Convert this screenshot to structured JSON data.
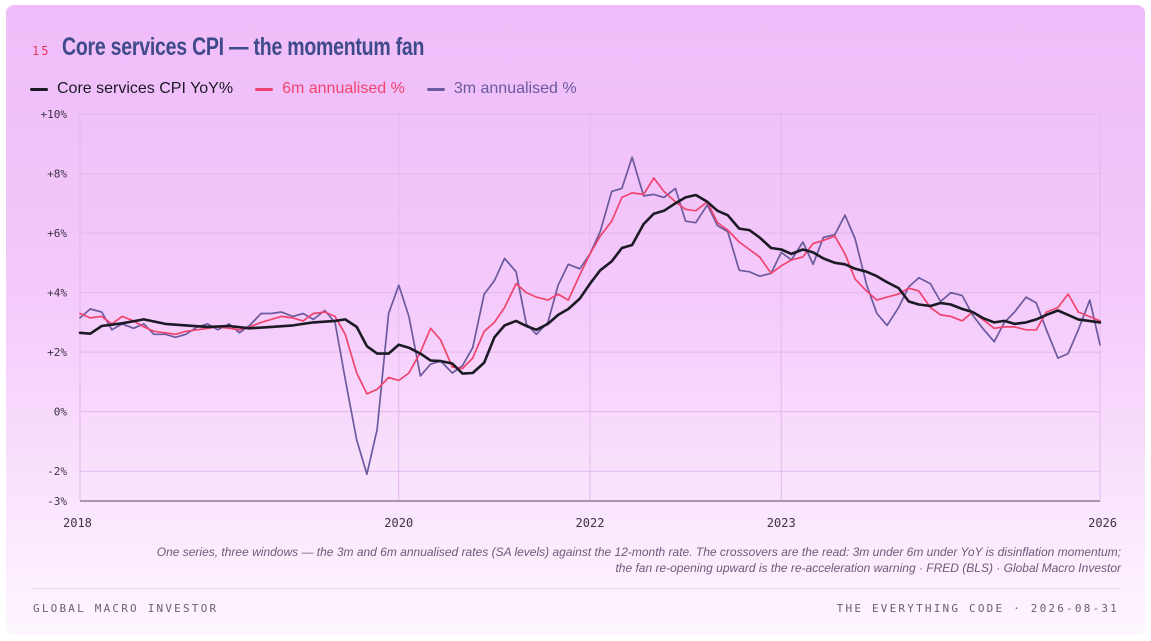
{
  "figure_number": "15",
  "title": "Core services CPI — the momentum fan",
  "caption_line1": "One series, three windows — the 3m and 6m annualised rates (SA levels) against the 12-month rate. The crossovers are the read: 3m under 6m under YoY is disinflation momentum;",
  "caption_line2": "the fan re-opening upward is the re-acceleration warning · FRED (BLS) · Global Macro Investor",
  "footer_left": "GLOBAL MACRO INVESTOR",
  "footer_right": "THE EVERYTHING CODE · 2026-08-31",
  "chart_data": {
    "type": "line",
    "x_axis": {
      "start": 2018.0,
      "end": 2026.0,
      "ticks": [
        {
          "value": 2018.0,
          "label": "2018"
        },
        {
          "value": 2020.5,
          "label": "2020"
        },
        {
          "value": 2022.0,
          "label": "2022"
        },
        {
          "value": 2023.5,
          "label": "2023"
        },
        {
          "value": 2026.0,
          "label": "2026"
        }
      ]
    },
    "y_axis": {
      "ylim": [
        -3,
        10
      ],
      "ticks": [
        {
          "value": 10,
          "label": "+10%"
        },
        {
          "value": 8,
          "label": "+8%"
        },
        {
          "value": 6,
          "label": "+6%"
        },
        {
          "value": 4,
          "label": "+4%"
        },
        {
          "value": 2,
          "label": "+2%"
        },
        {
          "value": 0,
          "label": "0%"
        },
        {
          "value": -2,
          "label": "-2%"
        },
        {
          "value": -3,
          "label": "-3%"
        }
      ]
    },
    "grid": true,
    "legend_position": "top-left",
    "series": [
      {
        "name": "Core services CPI YoY%",
        "color": "#1c1a24",
        "points": [
          [
            2018.0,
            2.65
          ],
          [
            2018.08,
            2.62
          ],
          [
            2018.17,
            2.88
          ],
          [
            2018.33,
            2.97
          ],
          [
            2018.5,
            3.1
          ],
          [
            2018.67,
            2.95
          ],
          [
            2018.83,
            2.9
          ],
          [
            2019.0,
            2.85
          ],
          [
            2019.17,
            2.88
          ],
          [
            2019.33,
            2.8
          ],
          [
            2019.5,
            2.85
          ],
          [
            2019.67,
            2.9
          ],
          [
            2019.83,
            3.0
          ],
          [
            2020.0,
            3.05
          ],
          [
            2020.08,
            3.1
          ],
          [
            2020.17,
            2.85
          ],
          [
            2020.25,
            2.2
          ],
          [
            2020.33,
            1.95
          ],
          [
            2020.42,
            1.95
          ],
          [
            2020.5,
            2.25
          ],
          [
            2020.58,
            2.15
          ],
          [
            2020.67,
            1.95
          ],
          [
            2020.75,
            1.72
          ],
          [
            2020.83,
            1.7
          ],
          [
            2020.92,
            1.62
          ],
          [
            2021.0,
            1.28
          ],
          [
            2021.08,
            1.3
          ],
          [
            2021.17,
            1.65
          ],
          [
            2021.25,
            2.5
          ],
          [
            2021.33,
            2.9
          ],
          [
            2021.42,
            3.05
          ],
          [
            2021.5,
            2.88
          ],
          [
            2021.58,
            2.75
          ],
          [
            2021.67,
            2.95
          ],
          [
            2021.75,
            3.25
          ],
          [
            2021.83,
            3.45
          ],
          [
            2021.92,
            3.8
          ],
          [
            2022.0,
            4.3
          ],
          [
            2022.08,
            4.75
          ],
          [
            2022.17,
            5.05
          ],
          [
            2022.25,
            5.5
          ],
          [
            2022.33,
            5.6
          ],
          [
            2022.42,
            6.3
          ],
          [
            2022.5,
            6.65
          ],
          [
            2022.58,
            6.75
          ],
          [
            2022.67,
            7.0
          ],
          [
            2022.75,
            7.2
          ],
          [
            2022.83,
            7.28
          ],
          [
            2022.92,
            7.05
          ],
          [
            2023.0,
            6.75
          ],
          [
            2023.08,
            6.6
          ],
          [
            2023.17,
            6.15
          ],
          [
            2023.25,
            6.1
          ],
          [
            2023.33,
            5.85
          ],
          [
            2023.42,
            5.5
          ],
          [
            2023.5,
            5.45
          ],
          [
            2023.58,
            5.3
          ],
          [
            2023.67,
            5.45
          ],
          [
            2023.75,
            5.35
          ],
          [
            2023.83,
            5.15
          ],
          [
            2023.92,
            5.0
          ],
          [
            2024.0,
            4.95
          ],
          [
            2024.08,
            4.8
          ],
          [
            2024.17,
            4.7
          ],
          [
            2024.25,
            4.55
          ],
          [
            2024.33,
            4.35
          ],
          [
            2024.42,
            4.15
          ],
          [
            2024.5,
            3.7
          ],
          [
            2024.58,
            3.6
          ],
          [
            2024.67,
            3.55
          ],
          [
            2024.75,
            3.65
          ],
          [
            2024.83,
            3.6
          ],
          [
            2024.92,
            3.45
          ],
          [
            2025.0,
            3.35
          ],
          [
            2025.08,
            3.15
          ],
          [
            2025.17,
            3.0
          ],
          [
            2025.25,
            3.05
          ],
          [
            2025.33,
            2.95
          ],
          [
            2025.42,
            3.0
          ],
          [
            2025.5,
            3.1
          ],
          [
            2025.58,
            3.25
          ],
          [
            2025.67,
            3.4
          ],
          [
            2025.75,
            3.25
          ],
          [
            2025.83,
            3.1
          ],
          [
            2026.0,
            3.0
          ]
        ]
      },
      {
        "name": "6m annualised %",
        "color": "#f0446e",
        "points": [
          [
            2018.0,
            3.3
          ],
          [
            2018.08,
            3.15
          ],
          [
            2018.17,
            3.2
          ],
          [
            2018.25,
            2.95
          ],
          [
            2018.33,
            3.2
          ],
          [
            2018.42,
            3.05
          ],
          [
            2018.5,
            2.85
          ],
          [
            2018.58,
            2.7
          ],
          [
            2018.67,
            2.65
          ],
          [
            2018.75,
            2.6
          ],
          [
            2018.83,
            2.7
          ],
          [
            2018.92,
            2.75
          ],
          [
            2019.0,
            2.8
          ],
          [
            2019.08,
            2.85
          ],
          [
            2019.17,
            2.8
          ],
          [
            2019.25,
            2.75
          ],
          [
            2019.33,
            2.85
          ],
          [
            2019.42,
            3.0
          ],
          [
            2019.5,
            3.1
          ],
          [
            2019.58,
            3.2
          ],
          [
            2019.67,
            3.15
          ],
          [
            2019.75,
            3.05
          ],
          [
            2019.83,
            3.3
          ],
          [
            2019.92,
            3.35
          ],
          [
            2020.0,
            3.2
          ],
          [
            2020.08,
            2.6
          ],
          [
            2020.17,
            1.3
          ],
          [
            2020.25,
            0.6
          ],
          [
            2020.33,
            0.75
          ],
          [
            2020.42,
            1.15
          ],
          [
            2020.5,
            1.05
          ],
          [
            2020.58,
            1.3
          ],
          [
            2020.67,
            2.0
          ],
          [
            2020.75,
            2.8
          ],
          [
            2020.83,
            2.4
          ],
          [
            2020.92,
            1.5
          ],
          [
            2021.0,
            1.45
          ],
          [
            2021.08,
            1.8
          ],
          [
            2021.17,
            2.7
          ],
          [
            2021.25,
            3.0
          ],
          [
            2021.33,
            3.5
          ],
          [
            2021.42,
            4.3
          ],
          [
            2021.5,
            4.0
          ],
          [
            2021.58,
            3.85
          ],
          [
            2021.67,
            3.75
          ],
          [
            2021.75,
            3.95
          ],
          [
            2021.83,
            3.75
          ],
          [
            2021.92,
            4.6
          ],
          [
            2022.0,
            5.3
          ],
          [
            2022.08,
            5.9
          ],
          [
            2022.17,
            6.4
          ],
          [
            2022.25,
            7.2
          ],
          [
            2022.33,
            7.35
          ],
          [
            2022.42,
            7.3
          ],
          [
            2022.5,
            7.85
          ],
          [
            2022.58,
            7.4
          ],
          [
            2022.67,
            7.05
          ],
          [
            2022.75,
            6.8
          ],
          [
            2022.83,
            6.75
          ],
          [
            2022.92,
            7.05
          ],
          [
            2023.0,
            6.35
          ],
          [
            2023.08,
            6.1
          ],
          [
            2023.17,
            5.7
          ],
          [
            2023.25,
            5.45
          ],
          [
            2023.33,
            5.2
          ],
          [
            2023.42,
            4.65
          ],
          [
            2023.5,
            4.9
          ],
          [
            2023.58,
            5.1
          ],
          [
            2023.67,
            5.2
          ],
          [
            2023.75,
            5.65
          ],
          [
            2023.83,
            5.75
          ],
          [
            2023.92,
            5.9
          ],
          [
            2024.0,
            5.3
          ],
          [
            2024.08,
            4.45
          ],
          [
            2024.17,
            4.05
          ],
          [
            2024.25,
            3.75
          ],
          [
            2024.33,
            3.85
          ],
          [
            2024.42,
            3.95
          ],
          [
            2024.5,
            4.15
          ],
          [
            2024.58,
            4.05
          ],
          [
            2024.67,
            3.5
          ],
          [
            2024.75,
            3.25
          ],
          [
            2024.83,
            3.2
          ],
          [
            2024.92,
            3.05
          ],
          [
            2025.0,
            3.35
          ],
          [
            2025.08,
            3.1
          ],
          [
            2025.17,
            2.8
          ],
          [
            2025.25,
            2.85
          ],
          [
            2025.33,
            2.85
          ],
          [
            2025.42,
            2.75
          ],
          [
            2025.5,
            2.75
          ],
          [
            2025.58,
            3.35
          ],
          [
            2025.67,
            3.5
          ],
          [
            2025.75,
            3.95
          ],
          [
            2025.83,
            3.35
          ],
          [
            2026.0,
            3.05
          ]
        ]
      },
      {
        "name": "3m annualised %",
        "color": "#6b5a9e",
        "points": [
          [
            2018.0,
            3.15
          ],
          [
            2018.08,
            3.45
          ],
          [
            2018.17,
            3.35
          ],
          [
            2018.25,
            2.75
          ],
          [
            2018.33,
            2.95
          ],
          [
            2018.42,
            2.8
          ],
          [
            2018.5,
            2.95
          ],
          [
            2018.58,
            2.6
          ],
          [
            2018.67,
            2.6
          ],
          [
            2018.75,
            2.5
          ],
          [
            2018.83,
            2.6
          ],
          [
            2018.92,
            2.85
          ],
          [
            2019.0,
            2.95
          ],
          [
            2019.08,
            2.75
          ],
          [
            2019.17,
            2.95
          ],
          [
            2019.25,
            2.65
          ],
          [
            2019.33,
            2.9
          ],
          [
            2019.42,
            3.3
          ],
          [
            2019.5,
            3.3
          ],
          [
            2019.58,
            3.35
          ],
          [
            2019.67,
            3.2
          ],
          [
            2019.75,
            3.3
          ],
          [
            2019.83,
            3.1
          ],
          [
            2019.92,
            3.4
          ],
          [
            2020.0,
            3.0
          ],
          [
            2020.08,
            1.1
          ],
          [
            2020.17,
            -0.95
          ],
          [
            2020.25,
            -2.1
          ],
          [
            2020.33,
            -0.6
          ],
          [
            2020.42,
            3.3
          ],
          [
            2020.5,
            4.25
          ],
          [
            2020.58,
            3.2
          ],
          [
            2020.67,
            1.2
          ],
          [
            2020.75,
            1.6
          ],
          [
            2020.83,
            1.7
          ],
          [
            2020.92,
            1.3
          ],
          [
            2021.0,
            1.55
          ],
          [
            2021.08,
            2.15
          ],
          [
            2021.17,
            3.95
          ],
          [
            2021.25,
            4.4
          ],
          [
            2021.33,
            5.15
          ],
          [
            2021.42,
            4.7
          ],
          [
            2021.5,
            2.95
          ],
          [
            2021.58,
            2.6
          ],
          [
            2021.67,
            3.0
          ],
          [
            2021.75,
            4.25
          ],
          [
            2021.83,
            4.95
          ],
          [
            2021.92,
            4.8
          ],
          [
            2022.0,
            5.3
          ],
          [
            2022.08,
            6.05
          ],
          [
            2022.17,
            7.4
          ],
          [
            2022.25,
            7.5
          ],
          [
            2022.33,
            8.55
          ],
          [
            2022.42,
            7.25
          ],
          [
            2022.5,
            7.3
          ],
          [
            2022.58,
            7.2
          ],
          [
            2022.67,
            7.5
          ],
          [
            2022.75,
            6.4
          ],
          [
            2022.83,
            6.35
          ],
          [
            2022.92,
            6.95
          ],
          [
            2023.0,
            6.25
          ],
          [
            2023.08,
            6.05
          ],
          [
            2023.17,
            4.75
          ],
          [
            2023.25,
            4.7
          ],
          [
            2023.33,
            4.55
          ],
          [
            2023.42,
            4.65
          ],
          [
            2023.5,
            5.35
          ],
          [
            2023.58,
            5.1
          ],
          [
            2023.67,
            5.7
          ],
          [
            2023.75,
            4.95
          ],
          [
            2023.83,
            5.85
          ],
          [
            2023.92,
            5.95
          ],
          [
            2024.0,
            6.6
          ],
          [
            2024.08,
            5.8
          ],
          [
            2024.17,
            4.25
          ],
          [
            2024.25,
            3.3
          ],
          [
            2024.33,
            2.9
          ],
          [
            2024.42,
            3.5
          ],
          [
            2024.5,
            4.2
          ],
          [
            2024.58,
            4.5
          ],
          [
            2024.67,
            4.3
          ],
          [
            2024.75,
            3.7
          ],
          [
            2024.83,
            4.0
          ],
          [
            2024.92,
            3.9
          ],
          [
            2025.0,
            3.25
          ],
          [
            2025.08,
            2.8
          ],
          [
            2025.17,
            2.35
          ],
          [
            2025.25,
            3.0
          ],
          [
            2025.33,
            3.35
          ],
          [
            2025.42,
            3.85
          ],
          [
            2025.5,
            3.65
          ],
          [
            2025.58,
            2.75
          ],
          [
            2025.67,
            1.8
          ],
          [
            2025.75,
            1.95
          ],
          [
            2025.83,
            2.75
          ],
          [
            2025.92,
            3.75
          ],
          [
            2026.0,
            2.25
          ]
        ]
      }
    ]
  }
}
